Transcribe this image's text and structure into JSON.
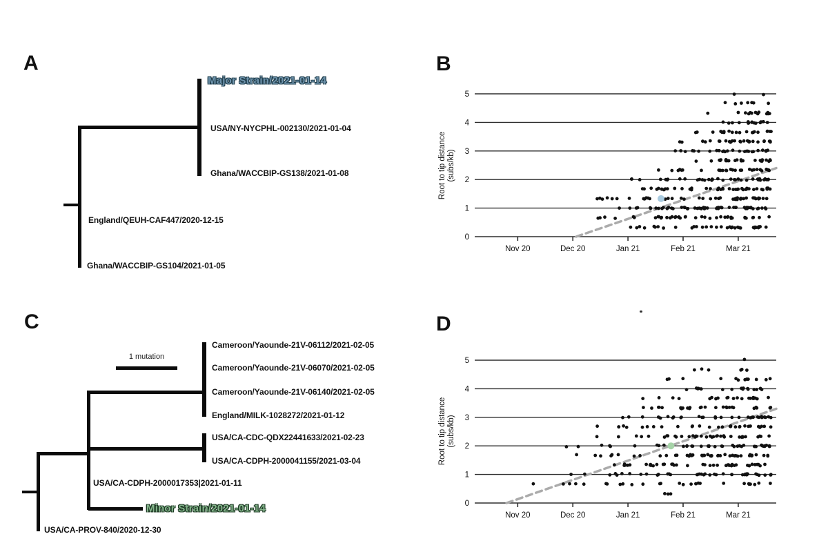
{
  "figure": {
    "panel_a_letter": "A",
    "panel_b_letter": "B",
    "panel_c_letter": "C",
    "panel_d_letter": "D"
  },
  "colors": {
    "strain-major-fill": "#6f94ad",
    "strain-major-outline": "#22404f",
    "strain-minor-fill": "#84b58b",
    "strain-minor-outline": "#1f3b26",
    "highlight-major-point": "#a9cbe0",
    "highlight-minor-point": "#a6d3a8",
    "trend-line": "#ababab",
    "ink": "#111111"
  },
  "tree_a": {
    "tips": {
      "major": "Major Strain/2021-01-14",
      "usa_ny": "USA/NY-NYCPHL-002130/2021-01-04",
      "ghana_gs138": "Ghana/WACCBIP-GS138/2021-01-08",
      "england_qeuh": "England/QEUH-CAF447/2020-12-15",
      "ghana_gs104": "Ghana/WACCBIP-GS104/2021-01-05"
    }
  },
  "tree_c": {
    "scale_bar_label": "1 mutation",
    "tips": {
      "cameroon_06112": "Cameroon/Yaounde-21V-06112/2021-02-05",
      "cameroon_06070": "Cameroon/Yaounde-21V-06070/2021-02-05",
      "cameroon_06140": "Cameroon/Yaounde-21V-06140/2021-02-05",
      "england_milk": "England/MILK-1028272/2021-01-12",
      "usa_cdc": "USA/CA-CDC-QDX22441633/2021-02-23",
      "usa_cdph_41155": "USA/CA-CDPH-2000041155/2021-03-04",
      "usa_cdph_17353": "USA/CA-CDPH-2000017353|2021-01-11",
      "minor": "Minor Strain/2021-01-14",
      "usa_prov840": "USA/CA-PROV-840/2020-12-30"
    }
  },
  "chart_data": [
    {
      "id": "B",
      "type": "scatter",
      "ylabel_line1": "Root to tip distance",
      "ylabel_line2": "(subs/kb)",
      "x_tick_labels": [
        "Nov 20",
        "Dec 20",
        "Jan 21",
        "Feb 21",
        "Mar 21"
      ],
      "x_tick_values": [
        0,
        1,
        2,
        3,
        4
      ],
      "y_tick_values": [
        0,
        1,
        2,
        3,
        4,
        5
      ],
      "xlim": [
        -0.78,
        4.69
      ],
      "ylim": [
        0,
        5
      ],
      "grid": "horizontal",
      "legend": "none",
      "point_color": "#111111",
      "point_radius": 2.4,
      "density_bias": 0.55,
      "seed": 1234,
      "trend": {
        "x0": 1.06,
        "y0": 0,
        "x1": 4.69,
        "y1": 2.4,
        "color": "#ababab",
        "dash": [
          9,
          6
        ],
        "width": 3.5
      },
      "highlight": {
        "x": 2.6,
        "y": 1.33,
        "radius": 5,
        "color": "#a9cbe0"
      },
      "bands": [
        {
          "y": 5.0,
          "x0": 3.75,
          "x1": 4.5,
          "n": 2
        },
        {
          "y": 4.67,
          "x0": 3.6,
          "x1": 4.55,
          "n": 7
        },
        {
          "y": 4.33,
          "x0": 3.3,
          "x1": 4.6,
          "n": 13
        },
        {
          "y": 4.0,
          "x0": 3.4,
          "x1": 4.6,
          "n": 16
        },
        {
          "y": 3.67,
          "x0": 3.05,
          "x1": 4.6,
          "n": 20
        },
        {
          "y": 3.33,
          "x0": 2.85,
          "x1": 4.6,
          "n": 26
        },
        {
          "y": 3.0,
          "x0": 2.75,
          "x1": 4.6,
          "n": 26
        },
        {
          "y": 2.67,
          "x0": 2.85,
          "x1": 4.6,
          "n": 24
        },
        {
          "y": 2.33,
          "x0": 2.3,
          "x1": 4.6,
          "n": 30
        },
        {
          "y": 2.0,
          "x0": 1.8,
          "x1": 4.6,
          "n": 36
        },
        {
          "y": 1.67,
          "x0": 1.75,
          "x1": 4.6,
          "n": 42
        },
        {
          "y": 1.33,
          "x0": 1.2,
          "x1": 4.6,
          "n": 46
        },
        {
          "y": 1.0,
          "x0": 1.65,
          "x1": 4.6,
          "n": 52
        },
        {
          "y": 0.67,
          "x0": 1.25,
          "x1": 4.6,
          "n": 40
        },
        {
          "y": 0.33,
          "x0": 1.75,
          "x1": 4.6,
          "n": 34
        }
      ]
    },
    {
      "id": "D",
      "type": "scatter",
      "ylabel_line1": "Root to tip distance",
      "ylabel_line2": "(subs/kb)",
      "x_tick_labels": [
        "Nov 20",
        "Dec 20",
        "Jan 21",
        "Feb 21",
        "Mar 21"
      ],
      "x_tick_values": [
        0,
        1,
        2,
        3,
        4
      ],
      "y_tick_values": [
        0,
        1,
        2,
        3,
        4,
        5
      ],
      "xlim": [
        -0.78,
        4.69
      ],
      "ylim": [
        0,
        5
      ],
      "grid": "horizontal",
      "legend": "none",
      "point_color": "#111111",
      "point_radius": 2.4,
      "density_bias": 0.55,
      "seed": 777,
      "trend": {
        "x0": -0.2,
        "y0": 0,
        "x1": 4.69,
        "y1": 3.3,
        "color": "#ababab",
        "dash": [
          9,
          6
        ],
        "width": 3.5
      },
      "highlight": {
        "x": 2.78,
        "y": 2.0,
        "radius": 5,
        "color": "#a6d3a8"
      },
      "bands": [
        {
          "y": 5.0,
          "x0": 3.95,
          "x1": 4.15,
          "n": 1
        },
        {
          "y": 4.67,
          "x0": 2.55,
          "x1": 4.5,
          "n": 6
        },
        {
          "y": 4.33,
          "x0": 2.45,
          "x1": 4.6,
          "n": 13
        },
        {
          "y": 4.0,
          "x0": 2.3,
          "x1": 4.6,
          "n": 17
        },
        {
          "y": 3.67,
          "x0": 1.75,
          "x1": 4.6,
          "n": 22
        },
        {
          "y": 3.33,
          "x0": 1.95,
          "x1": 4.6,
          "n": 27
        },
        {
          "y": 3.0,
          "x0": 1.65,
          "x1": 4.6,
          "n": 32
        },
        {
          "y": 2.67,
          "x0": 0.95,
          "x1": 4.6,
          "n": 30
        },
        {
          "y": 2.33,
          "x0": 1.25,
          "x1": 4.6,
          "n": 36
        },
        {
          "y": 2.0,
          "x0": 0.75,
          "x1": 4.6,
          "n": 42
        },
        {
          "y": 1.67,
          "x0": 0.25,
          "x1": 4.6,
          "n": 44
        },
        {
          "y": 1.33,
          "x0": 1.05,
          "x1": 4.6,
          "n": 42
        },
        {
          "y": 1.0,
          "x0": 0.55,
          "x1": 4.6,
          "n": 38
        },
        {
          "y": 0.67,
          "x0": -0.25,
          "x1": 4.6,
          "n": 28
        },
        {
          "y": 0.33,
          "x0": 1.4,
          "x1": 3.1,
          "n": 3
        }
      ]
    }
  ]
}
